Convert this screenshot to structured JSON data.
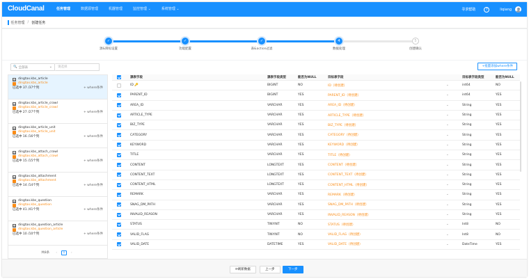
{
  "app": {
    "logo": "CloudCanal"
  },
  "nav": {
    "items": [
      {
        "label": "任务管理",
        "active": true
      },
      {
        "label": "数据源管理",
        "active": false
      },
      {
        "label": "机器管理",
        "active": false
      },
      {
        "label": "监控管理 ⌄",
        "active": false
      },
      {
        "label": "系统管理 ⌄",
        "active": false
      }
    ],
    "help_link": "寻求帮助",
    "help_icon": "?",
    "username": "liqiang"
  },
  "breadcrumb": {
    "parent": "任务管理",
    "sep": "/",
    "current": "创建任务"
  },
  "steps": [
    {
      "label": "源&目标设置",
      "state": "done",
      "mark": "✓"
    },
    {
      "label": "功能配置",
      "state": "done",
      "mark": "✓"
    },
    {
      "label": "表&action过滤",
      "state": "done",
      "mark": "✓"
    },
    {
      "label": "数据处理",
      "state": "current",
      "mark": "4"
    },
    {
      "label": "创建确认",
      "state": "todo",
      "mark": "5"
    }
  ],
  "filter": {
    "select_placeholder": "全部表",
    "search_placeholder": "请选择"
  },
  "add_where_button": "+批量添加where条件",
  "tables": [
    {
      "src": "dingtax.kbs_article",
      "dst": "dingtax.kbs_article",
      "selected_info": "已选中 37 /37个列",
      "where": "+ where条件",
      "selected": true
    },
    {
      "src": "dingtax.kbs_article_crawl",
      "dst": "dingtax.kbs_article_crawl",
      "selected_info": "已选中 27 /27个列",
      "where": "+ where条件",
      "selected": false
    },
    {
      "src": "dingtax.kbs_article_unit",
      "dst": "dingtax.kbs_article_unit",
      "selected_info": "已选中 16 /16个列",
      "where": "+ where条件",
      "selected": false
    },
    {
      "src": "dingtax.kbs_attach_crawl",
      "dst": "dingtax.kbs_attach_crawl",
      "selected_info": "已选中 15 /15个列",
      "where": "+ where条件",
      "selected": false
    },
    {
      "src": "dingtax.kbs_attachment",
      "dst": "dingtax.kbs_attachment",
      "selected_info": "已选中 14 /14个列",
      "where": "+ where条件",
      "selected": false
    },
    {
      "src": "dingtax.kbs_question",
      "dst": "dingtax.kbs_question",
      "selected_info": "已选中 41 /41个列",
      "where": "+ where条件",
      "selected": false
    },
    {
      "src": "dingtax.kbs_question_article",
      "dst": "dingtax.kbs_question_article",
      "selected_info": "已选中 10 /10个列",
      "where": "+ where条件",
      "selected": false
    }
  ],
  "pager": {
    "total": "共8条",
    "prev": "‹",
    "current": "1",
    "next": "›"
  },
  "grid": {
    "headers": [
      "源表字段",
      "源表字段类型",
      "能否为NULL",
      "目标表字段",
      "目标表字段类型",
      "能否为NULL"
    ],
    "rows": [
      {
        "src": "ID 🔑",
        "type": "BIGINT",
        "null": "NO",
        "dst": "ID（待创建）",
        "dtype": "int64",
        "dnull": "NO",
        "checked": false
      },
      {
        "src": "PARENT_ID",
        "type": "BIGINT",
        "null": "YES",
        "dst": "PARENT_ID（待创建）",
        "dtype": "int64",
        "dnull": "YES",
        "checked": true
      },
      {
        "src": "AREA_ID",
        "type": "VARCHAR",
        "null": "YES",
        "dst": "AREA_ID（待创建）",
        "dtype": "String",
        "dnull": "YES",
        "checked": true
      },
      {
        "src": "ARTICLE_TYPE",
        "type": "VARCHAR",
        "null": "YES",
        "dst": "ARTICLE_TYPE（待创建）",
        "dtype": "String",
        "dnull": "YES",
        "checked": true
      },
      {
        "src": "BIZ_TYPE",
        "type": "VARCHAR",
        "null": "YES",
        "dst": "BIZ_TYPE（待创建）",
        "dtype": "String",
        "dnull": "YES",
        "checked": true
      },
      {
        "src": "CATEGORY",
        "type": "VARCHAR",
        "null": "YES",
        "dst": "CATEGORY（待创建）",
        "dtype": "String",
        "dnull": "YES",
        "checked": true
      },
      {
        "src": "KEYWORD",
        "type": "VARCHAR",
        "null": "YES",
        "dst": "KEYWORD（待创建）",
        "dtype": "String",
        "dnull": "YES",
        "checked": true
      },
      {
        "src": "TITLE",
        "type": "VARCHAR",
        "null": "YES",
        "dst": "TITLE（待创建）",
        "dtype": "String",
        "dnull": "YES",
        "checked": true
      },
      {
        "src": "CONTENT",
        "type": "LONGTEXT",
        "null": "YES",
        "dst": "CONTENT（待创建）",
        "dtype": "String",
        "dnull": "YES",
        "checked": true
      },
      {
        "src": "CONTENT_TEXT",
        "type": "LONGTEXT",
        "null": "YES",
        "dst": "CONTENT_TEXT（待创建）",
        "dtype": "String",
        "dnull": "YES",
        "checked": true
      },
      {
        "src": "CONTENT_HTML",
        "type": "LONGTEXT",
        "null": "YES",
        "dst": "CONTENT_HTML（待创建）",
        "dtype": "String",
        "dnull": "YES",
        "checked": true
      },
      {
        "src": "REMARK",
        "type": "VARCHAR",
        "null": "YES",
        "dst": "REMARK（待创建）",
        "dtype": "String",
        "dnull": "YES",
        "checked": true
      },
      {
        "src": "SNAG_DM_PATH",
        "type": "VARCHAR",
        "null": "YES",
        "dst": "SNAG_DM_PATH（待创建）",
        "dtype": "String",
        "dnull": "YES",
        "checked": true
      },
      {
        "src": "INVALID_REASON",
        "type": "VARCHAR",
        "null": "YES",
        "dst": "INVALID_REASON（待创建）",
        "dtype": "String",
        "dnull": "YES",
        "checked": true
      },
      {
        "src": "STATUS",
        "type": "TINYINT",
        "null": "NO",
        "dst": "STATUS（待创建）",
        "dtype": "Int8",
        "dnull": "NO",
        "checked": true
      },
      {
        "src": "VALID_FLAG",
        "type": "TINYINT",
        "null": "NO",
        "dst": "VALID_FLAG（待创建）",
        "dtype": "Int8",
        "dnull": "NO",
        "checked": true
      },
      {
        "src": "VALID_DATE",
        "type": "DATETIME",
        "null": "YES",
        "dst": "VALID_DATE（待创建）",
        "dtype": "DateTime",
        "dnull": "YES",
        "checked": true
      }
    ]
  },
  "footer": {
    "refresh": "⟳刷新数据",
    "prev": "上一步",
    "next": "下一步"
  },
  "colors": {
    "primary": "#1890ff",
    "orange": "#fa8c16",
    "selected_bg": "#e6f4ff"
  }
}
